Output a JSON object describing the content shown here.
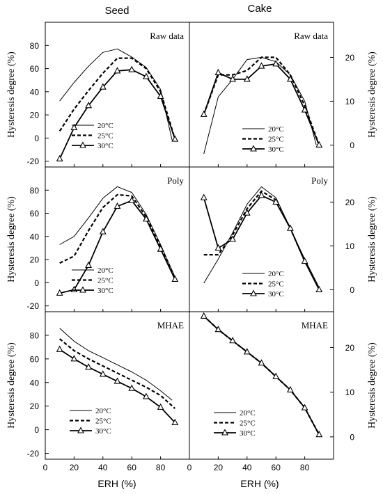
{
  "columns": [
    "Seed",
    "Cake"
  ],
  "xlabel": "ERH (%)",
  "chart_data": [
    {
      "type": "line",
      "column": "Seed",
      "panel": "Raw data",
      "ylabel": "Hysteresis degree (%)",
      "yaxis_side": "left",
      "ylim": [
        -25,
        100
      ],
      "yticks": [
        -20,
        0,
        20,
        40,
        60,
        80
      ],
      "xlim": [
        0,
        100
      ],
      "xticks": [],
      "legend": "bottom-center",
      "series": [
        {
          "name": "20°C",
          "style": "solid-thin",
          "x": [
            10,
            20,
            30,
            40,
            50,
            60,
            70,
            80,
            88
          ],
          "y": [
            32,
            48,
            62,
            74,
            77,
            70,
            61,
            42,
            -2
          ]
        },
        {
          "name": "25°C",
          "style": "dashed",
          "x": [
            10,
            20,
            30,
            40,
            50,
            60,
            70,
            80,
            90
          ],
          "y": [
            6,
            25,
            41,
            56,
            69,
            69,
            60,
            40,
            -1
          ]
        },
        {
          "name": "30°C",
          "style": "triangle",
          "x": [
            10,
            20,
            30,
            40,
            50,
            60,
            70,
            80,
            90
          ],
          "y": [
            -18,
            9,
            28,
            44,
            58,
            59,
            53,
            36,
            -1
          ]
        }
      ]
    },
    {
      "type": "line",
      "column": "Cake",
      "panel": "Raw data",
      "ylabel": "Hysteresis degree (%)",
      "yaxis_side": "right",
      "ylim": [
        -5,
        28
      ],
      "yticks": [
        0,
        10,
        20
      ],
      "xlim": [
        0,
        100
      ],
      "xticks": [],
      "legend": "bottom-right",
      "series": [
        {
          "name": "20°C",
          "style": "solid-thin",
          "x": [
            10,
            20,
            30,
            40,
            50,
            60,
            70,
            80,
            88
          ],
          "y": [
            -2,
            11,
            15,
            19.5,
            20,
            19,
            16,
            10,
            0
          ]
        },
        {
          "name": "25°C",
          "style": "dashed",
          "x": [
            10,
            20,
            30,
            40,
            50,
            60,
            70,
            80,
            90
          ],
          "y": [
            7,
            16,
            16,
            17,
            20,
            20,
            16,
            9,
            0
          ]
        },
        {
          "name": "30°C",
          "style": "triangle",
          "x": [
            10,
            20,
            30,
            40,
            50,
            60,
            70,
            80,
            90
          ],
          "y": [
            7,
            16.5,
            15,
            15,
            18,
            18.5,
            15,
            8,
            0
          ]
        }
      ]
    },
    {
      "type": "line",
      "column": "Seed",
      "panel": "Poly",
      "ylabel": "Hysteresis degree (%)",
      "yaxis_side": "left",
      "ylim": [
        -25,
        100
      ],
      "yticks": [
        -20,
        0,
        20,
        40,
        60,
        80
      ],
      "xlim": [
        0,
        100
      ],
      "xticks": [],
      "legend": "bottom-center",
      "series": [
        {
          "name": "20°C",
          "style": "solid-thin",
          "x": [
            10,
            20,
            30,
            40,
            50,
            60,
            70,
            80,
            90
          ],
          "y": [
            33,
            40,
            56,
            73,
            83,
            78,
            59,
            33,
            5
          ]
        },
        {
          "name": "25°C",
          "style": "dashed",
          "x": [
            10,
            20,
            30,
            40,
            50,
            60,
            70,
            80,
            90
          ],
          "y": [
            17,
            23,
            45,
            65,
            76,
            75,
            57,
            31,
            3
          ]
        },
        {
          "name": "30°C",
          "style": "triangle",
          "x": [
            10,
            20,
            30,
            40,
            50,
            60,
            70,
            80,
            90
          ],
          "y": [
            -9,
            -6,
            15,
            44,
            66,
            71,
            55,
            29,
            3
          ]
        }
      ]
    },
    {
      "type": "line",
      "column": "Cake",
      "panel": "Poly",
      "ylabel": "Hysteresis degree (%)",
      "yaxis_side": "right",
      "ylim": [
        -5,
        28
      ],
      "yticks": [
        0,
        10,
        20
      ],
      "xlim": [
        0,
        100
      ],
      "xticks": [],
      "legend": "bottom-right",
      "series": [
        {
          "name": "20°C",
          "style": "solid-thin",
          "x": [
            10,
            20,
            30,
            40,
            50,
            60,
            70,
            80,
            90
          ],
          "y": [
            1.5,
            7,
            13,
            19.5,
            23.5,
            21,
            14,
            7,
            0.5
          ]
        },
        {
          "name": "25°C",
          "style": "dashed",
          "x": [
            10,
            20,
            30,
            40,
            50,
            60,
            70,
            80,
            90
          ],
          "y": [
            8,
            8,
            12.5,
            18.5,
            22.5,
            20.5,
            14,
            6.5,
            0.3
          ]
        },
        {
          "name": "30°C",
          "style": "triangle",
          "x": [
            10,
            20,
            30,
            40,
            50,
            60,
            70,
            80,
            90
          ],
          "y": [
            21,
            9.5,
            11.5,
            17.5,
            21.5,
            20,
            14,
            6.5,
            0
          ]
        }
      ]
    },
    {
      "type": "line",
      "column": "Seed",
      "panel": "MHAE",
      "ylabel": "Hysteresis degree (%)",
      "yaxis_side": "left",
      "ylim": [
        -25,
        100
      ],
      "yticks": [
        -20,
        0,
        20,
        40,
        60,
        80
      ],
      "xlim": [
        0,
        100
      ],
      "xticks": [
        0,
        20,
        40,
        60,
        80
      ],
      "legend": "bottom-center",
      "series": [
        {
          "name": "20°C",
          "style": "solid-thin",
          "x": [
            10,
            20,
            30,
            40,
            50,
            60,
            70,
            80,
            88
          ],
          "y": [
            86,
            75,
            67,
            61,
            55,
            49,
            42,
            33,
            25
          ]
        },
        {
          "name": "25°C",
          "style": "dashed",
          "x": [
            10,
            20,
            30,
            40,
            50,
            60,
            70,
            80,
            90
          ],
          "y": [
            77,
            67,
            60,
            54,
            48,
            42,
            36,
            29,
            18
          ]
        },
        {
          "name": "30°C",
          "style": "triangle",
          "x": [
            10,
            20,
            30,
            40,
            50,
            60,
            70,
            80,
            90
          ],
          "y": [
            68,
            60,
            53,
            47,
            41,
            35,
            28,
            19,
            6
          ]
        }
      ]
    },
    {
      "type": "line",
      "column": "Cake",
      "panel": "MHAE",
      "ylabel": "Hysteresis degree (%)",
      "yaxis_side": "right",
      "ylim": [
        -5,
        28
      ],
      "yticks": [
        0,
        10,
        20
      ],
      "xlim": [
        0,
        100
      ],
      "xticks": [
        0,
        20,
        40,
        60,
        80
      ],
      "legend": "bottom-left",
      "series": [
        {
          "name": "20°C",
          "style": "solid-thin",
          "x": [
            10,
            20,
            30,
            40,
            50,
            60,
            70,
            80,
            90
          ],
          "y": [
            27,
            24,
            21.5,
            19,
            16.5,
            13.5,
            10.5,
            6.5,
            0.5
          ]
        },
        {
          "name": "25°C",
          "style": "dashed",
          "x": [
            10,
            20,
            30,
            40,
            50,
            60,
            70,
            80,
            90
          ],
          "y": [
            27,
            24,
            21.5,
            19,
            16.5,
            13.5,
            10.5,
            6.5,
            0.5
          ]
        },
        {
          "name": "30°C",
          "style": "triangle",
          "x": [
            10,
            20,
            30,
            40,
            50,
            60,
            70,
            80,
            90
          ],
          "y": [
            27,
            24,
            21.5,
            19,
            16.5,
            13.5,
            10.5,
            6.5,
            0.5
          ]
        }
      ]
    }
  ]
}
